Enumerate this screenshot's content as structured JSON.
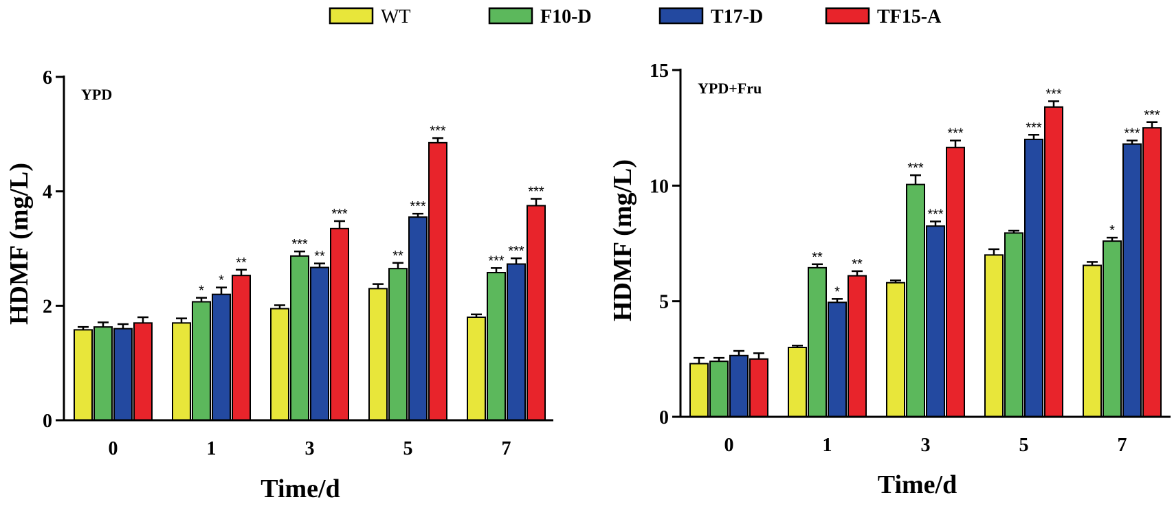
{
  "legend": [
    {
      "name": "WT",
      "color": "#e8e63a",
      "bold": false
    },
    {
      "name": "F10-D",
      "color": "#5cb85c",
      "bold": true
    },
    {
      "name": "T17-D",
      "color": "#2349a0",
      "bold": true
    },
    {
      "name": "TF15-A",
      "color": "#e8242b",
      "bold": true
    }
  ],
  "chart_data": [
    {
      "type": "bar",
      "panel_label": "YPD",
      "ylabel": "HDMF (mg/L)",
      "xlabel": "Time/d",
      "categories": [
        "0",
        "1",
        "3",
        "5",
        "7"
      ],
      "ylim": [
        0,
        6
      ],
      "yticks": [
        "0",
        "2",
        "4",
        "6"
      ],
      "series": [
        {
          "name": "WT",
          "values": [
            1.58,
            1.7,
            1.95,
            2.3,
            1.8
          ],
          "errors": [
            0.05,
            0.08,
            0.06,
            0.08,
            0.05
          ],
          "stars": [
            "",
            "",
            "",
            "",
            ""
          ]
        },
        {
          "name": "F10-D",
          "values": [
            1.63,
            2.07,
            2.87,
            2.65,
            2.58
          ],
          "errors": [
            0.08,
            0.07,
            0.08,
            0.1,
            0.08
          ],
          "stars": [
            "",
            "*",
            "***",
            "**",
            "***"
          ]
        },
        {
          "name": "T17-D",
          "values": [
            1.6,
            2.2,
            2.67,
            3.55,
            2.73
          ],
          "errors": [
            0.08,
            0.12,
            0.07,
            0.06,
            0.1
          ],
          "stars": [
            "",
            "*",
            "**",
            "***",
            "***"
          ]
        },
        {
          "name": "TF15-A",
          "values": [
            1.7,
            2.53,
            3.35,
            4.85,
            3.75
          ],
          "errors": [
            0.1,
            0.1,
            0.13,
            0.08,
            0.12
          ],
          "stars": [
            "",
            "**",
            "***",
            "***",
            "***"
          ]
        }
      ]
    },
    {
      "type": "bar",
      "panel_label": "YPD+Fru",
      "ylabel": "HDMF (mg/L)",
      "xlabel": "Time/d",
      "categories": [
        "0",
        "1",
        "3",
        "5",
        "7"
      ],
      "ylim": [
        0,
        15
      ],
      "yticks": [
        "0",
        "5",
        "10",
        "15"
      ],
      "series": [
        {
          "name": "WT",
          "values": [
            2.3,
            3.0,
            5.8,
            7.0,
            6.55
          ],
          "errors": [
            0.25,
            0.08,
            0.1,
            0.25,
            0.15
          ],
          "stars": [
            "",
            "",
            "",
            "",
            ""
          ]
        },
        {
          "name": "F10-D",
          "values": [
            2.4,
            6.45,
            10.05,
            7.95,
            7.6
          ],
          "errors": [
            0.15,
            0.15,
            0.4,
            0.1,
            0.15
          ],
          "stars": [
            "",
            "**",
            "***",
            "",
            "*"
          ]
        },
        {
          "name": "T17-D",
          "values": [
            2.65,
            4.95,
            8.25,
            12.0,
            11.8
          ],
          "errors": [
            0.2,
            0.15,
            0.2,
            0.2,
            0.15
          ],
          "stars": [
            "",
            "*",
            "***",
            "***",
            "***"
          ]
        },
        {
          "name": "TF15-A",
          "values": [
            2.5,
            6.1,
            11.65,
            13.4,
            12.5
          ],
          "errors": [
            0.25,
            0.2,
            0.3,
            0.25,
            0.25
          ],
          "stars": [
            "",
            "**",
            "***",
            "***",
            "***"
          ]
        }
      ]
    }
  ]
}
